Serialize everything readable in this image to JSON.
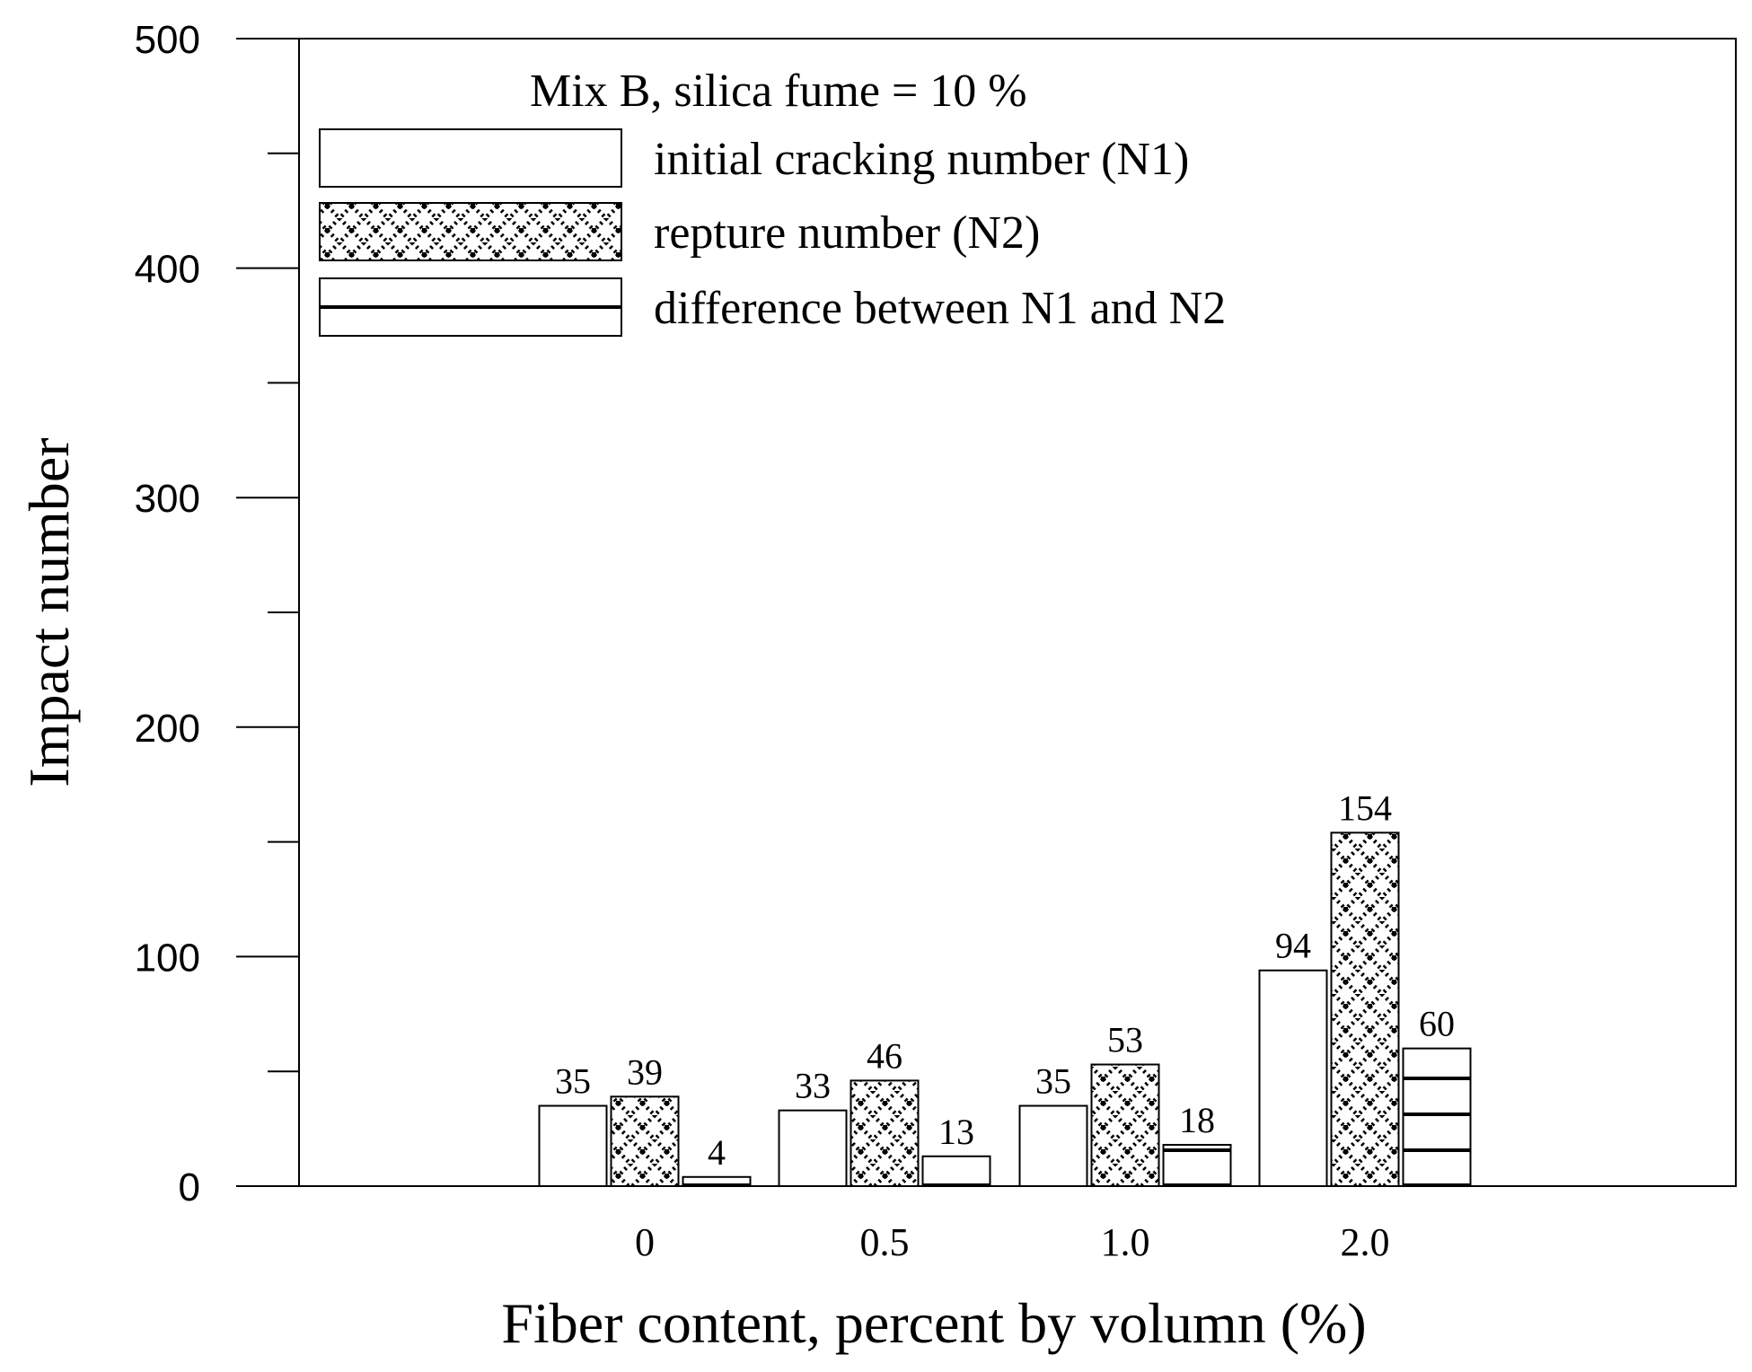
{
  "chart_data": {
    "type": "bar",
    "title": "",
    "annotation": "Mix B, silica fume = 10 %",
    "xlabel": "Fiber content, percent by volumn (%)",
    "ylabel": "Impact number",
    "ylim": [
      0,
      500
    ],
    "yticks_major": [
      0,
      100,
      200,
      300,
      400,
      500
    ],
    "yticks_minor": [
      50,
      150,
      250,
      350,
      450
    ],
    "categories": [
      "0",
      "0.5",
      "1.0",
      "2.0"
    ],
    "series": [
      {
        "name": "initial cracking number (N1)",
        "pattern": "blank",
        "values": [
          35,
          33,
          35,
          94
        ]
      },
      {
        "name": "repture number (N2)",
        "pattern": "checker",
        "values": [
          39,
          46,
          53,
          154
        ]
      },
      {
        "name": "difference between N1 and N2",
        "pattern": "horizontal-lines",
        "values": [
          4,
          13,
          18,
          60
        ]
      }
    ],
    "legend_position": "top-left",
    "grid": false,
    "colors": {
      "bar_fill": "#ffffff",
      "stroke": "#000000"
    }
  }
}
